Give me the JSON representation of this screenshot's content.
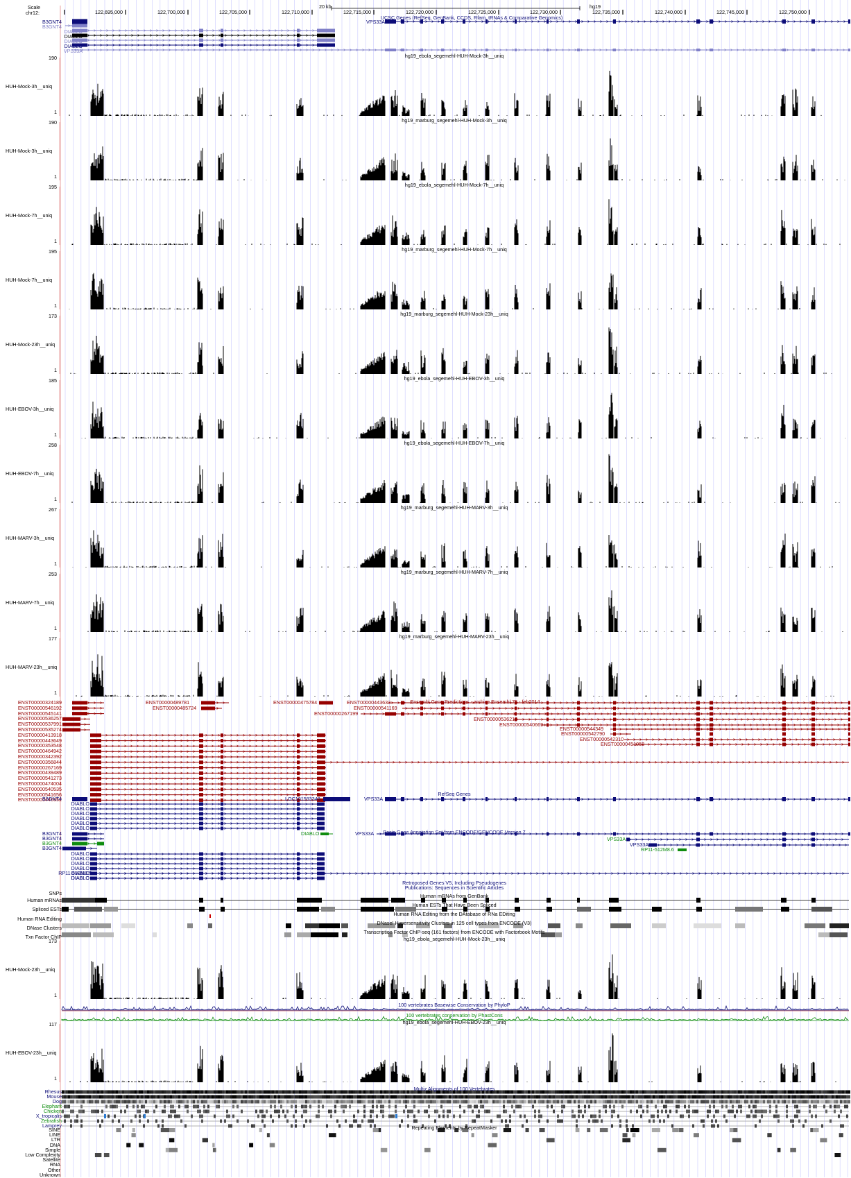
{
  "ruler": {
    "scale_label": "Scale",
    "chrom_label": "chr12:",
    "scale_bar": "20 kb",
    "assembly": "hg19",
    "positions": [
      "122,695,000",
      "122,700,000",
      "122,705,000",
      "122,710,000",
      "122,715,000",
      "122,720,000",
      "122,725,000",
      "122,730,000",
      "122,735,000",
      "122,740,000",
      "122,745,000",
      "122,750,000"
    ]
  },
  "ucsc_genes": {
    "title": "UCSC Genes (RefSeq, GenBank, CCDS, Rfam, tRNAs & Comparative Genomics)",
    "items": [
      "B3GNT4",
      "B3GNT4",
      "DIABLO",
      "DIABLO",
      "DIABLO",
      "DIABLO",
      "VPS33A",
      "VPS33A"
    ]
  },
  "signal_tracks": [
    {
      "title": "hg19_ebola_segemehl-HUH-Mock-3h__uniq",
      "label": "HUH-Mock-3h__uniq",
      "max": "190",
      "min": "1"
    },
    {
      "title": "hg19_marburg_segemehl-HUH-Mock-3h__uniq",
      "label": "HUH-Mock-3h__uniq",
      "max": "190",
      "min": "1"
    },
    {
      "title": "hg19_ebola_segemehl-HUH-Mock-7h__uniq",
      "label": "HUH-Mock-7h__uniq",
      "max": "195",
      "min": "1"
    },
    {
      "title": "hg19_marburg_segemehl-HUH-Mock-7h__uniq",
      "label": "HUH-Mock-7h__uniq",
      "max": "195",
      "min": "1"
    },
    {
      "title": "hg19_marburg_segemehl-HUH-Mock-23h__uniq",
      "label": "HUH-Mock-23h__uniq",
      "max": "173",
      "min": "1"
    },
    {
      "title": "hg19_ebola_segemehl-HUH-EBOV-3h__uniq",
      "label": "HUH-EBOV-3h__uniq",
      "max": "185",
      "min": "1"
    },
    {
      "title": "hg19_ebola_segemehl-HUH-EBOV-7h__uniq",
      "label": "HUH-EBOV-7h__uniq",
      "max": "258",
      "min": "1"
    },
    {
      "title": "hg19_marburg_segemehl-HUH-MARV-3h__uniq",
      "label": "HUH-MARV-3h__uniq",
      "max": "267",
      "min": "1"
    },
    {
      "title": "hg19_marburg_segemehl-HUH-MARV-7h__uniq",
      "label": "HUH-MARV-7h__uniq",
      "max": "253",
      "min": "1"
    },
    {
      "title": "hg19_marburg_segemehl-HUH-MARV-23h__uniq",
      "label": "HUH-MARV-23h__uniq",
      "max": "177",
      "min": "1"
    }
  ],
  "ensembl": {
    "title": "Ensembl Gene Predictions - archive Ensembl 75 - feb2014",
    "left_ids": [
      "ENST00000324189",
      "ENST00000546192",
      "ENST00000545141",
      "ENST00000536257",
      "ENST00000537991",
      "ENST00000535274",
      "ENST00000413918",
      "ENST00000443649",
      "ENST00000353548",
      "ENST00000464942",
      "ENST00000342392",
      "ENST00000356844",
      "ENST00000267169",
      "ENST00000439489",
      "ENST00000541273",
      "ENST00000474004",
      "ENST00000540535",
      "ENST00000541656",
      "ENST00000446652"
    ],
    "other_ids": [
      "ENST00000489781",
      "ENST00000485724",
      "ENST00000475784",
      "ENST00000443633",
      "ENST00000541169",
      "ENST00000267199",
      "ENST00000536212",
      "ENST00000540669",
      "ENST00000544349",
      "ENST00000542790",
      "ENST00000542310",
      "ENST00000451053"
    ]
  },
  "refseq": {
    "title": "RefSeq Genes",
    "items": [
      "B3GNT4",
      "DIABLO",
      "DIABLO",
      "DIABLO",
      "DIABLO",
      "DIABLO",
      "DIABLO",
      "LOC101593348",
      "VPS33A"
    ]
  },
  "gencode": {
    "title": "Basic Gene Annotation Set from ENCODE/GENCODE Version 7",
    "items": [
      "B3GNT4",
      "B3GNT4",
      "B3GNT4",
      "B3GNT4",
      "DIABLO",
      "DIABLO",
      "DIABLO",
      "DIABLO",
      "DIABLO",
      "DIABLO",
      "RP11-512M8.5",
      "DIABLO",
      "VPS33A",
      "VPS33A",
      "VPS33A",
      "RP11-512M8.6"
    ]
  },
  "misc_tracks": {
    "retroposed_title": "Retroposed Genes V5, Including Pseudogenes",
    "publications_title": "Publications: Sequences in Scientific Articles",
    "snps_label": "SNPs",
    "mrna_label": "Human mRNAs",
    "mrna_title": "Human mRNAs from GenBank",
    "est_label": "Spliced ESTs",
    "est_title": "Human ESTs That Have Been Spliced",
    "rna_edit_label": "Human RNA Editing",
    "rna_edit_title": "Human RNA Editing from the DAtabase of RNa EDiting",
    "dnase_label": "DNase Clusters",
    "dnase_title": "DNaseI Hypersensitivity Clusters in 125 cell types from ENCODE (V3)",
    "txn_label": "Txn Factor ChIP",
    "txn_title": "Transcription Factor ChIP-seq (161 factors) from ENCODE with Factorbook Motifs"
  },
  "bottom_signal": [
    {
      "title": "hg19_ebola_segemehl-HUH-Mock-23h__uniq",
      "label": "HUH-Mock-23h__uniq",
      "max": "173",
      "min": "1"
    },
    {
      "title": "hg19_ebola_segemehl-HUH-EBOV-23h__uniq",
      "label": "HUH-EBOV-23h__uniq",
      "max": "117",
      "min": "1"
    }
  ],
  "conservation": {
    "phylop_title": "100 vertebrates Basewise Conservation by PhyloP",
    "phastcons_title": "100 vertebrates conservation by PhastCons"
  },
  "multiz": {
    "title": "Multiz Alignments of 100 Vertebrates",
    "species": [
      "Rhesus",
      "Mouse",
      "Dog",
      "Elephant",
      "Chicken",
      "X_tropicalis",
      "Zebrafish",
      "Lamprey"
    ]
  },
  "repeatmasker": {
    "title": "Repeating Elements by RepeatMasker",
    "classes": [
      "SINE",
      "LINE",
      "LTR",
      "DNA",
      "Simple",
      "Low Complexity",
      "Satellite",
      "RNA",
      "Other",
      "Unknown"
    ]
  },
  "colors": {
    "ucsc_blue": "#0c0c78",
    "light_blue": "#8080c8",
    "ensembl_red": "#960000",
    "green": "#0f8c0f",
    "grid": "#d0d0ff",
    "pink": "#e8a0a0"
  }
}
